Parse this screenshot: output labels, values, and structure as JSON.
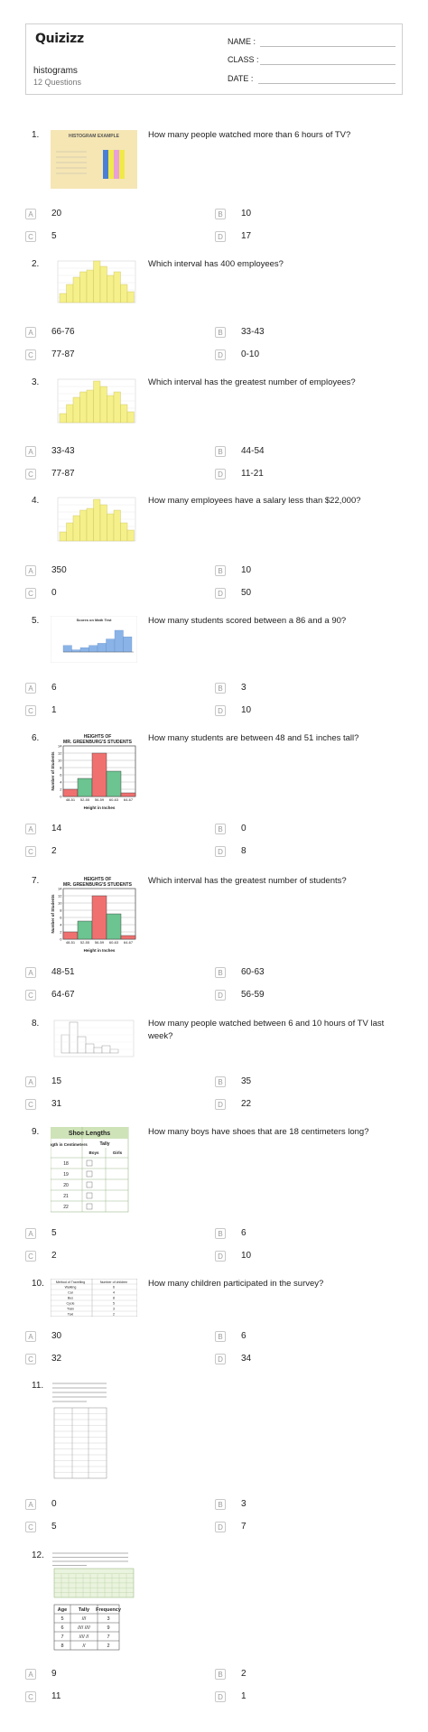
{
  "header": {
    "logo": "Quizizz",
    "title": "histograms",
    "subtitle": "12 Questions",
    "name_label": "NAME :",
    "class_label": "CLASS :",
    "date_label": "DATE :"
  },
  "questions": [
    {
      "num": "1.",
      "text": "How many people watched more than 6 hours of TV?",
      "options": [
        "20",
        "10",
        "5",
        "17"
      ],
      "image": {
        "title": "HISTOGRAM EXAMPLE"
      }
    },
    {
      "num": "2.",
      "text": "Which interval has 400 employees?",
      "options": [
        "66-76",
        "33-43",
        "77-87",
        "0-10"
      ]
    },
    {
      "num": "3.",
      "text": "Which interval has the greatest number of employees?",
      "options": [
        "33-43",
        "44-54",
        "77-87",
        "11-21"
      ]
    },
    {
      "num": "4.",
      "text": "How many employees have a salary less than $22,000?",
      "options": [
        "350",
        "10",
        "0",
        "50"
      ]
    },
    {
      "num": "5.",
      "text": "How many students scored between a 86 and a 90?",
      "options": [
        "6",
        "3",
        "1",
        "10"
      ],
      "image": {
        "title": "Scores on Math Test"
      }
    },
    {
      "num": "6.",
      "text": "How many students are between 48 and 51 inches tall?",
      "options": [
        "14",
        "0",
        "2",
        "8"
      ],
      "image": {
        "title1": "HEIGHTS OF",
        "title2": "MR. GREENBURG'S STUDENTS",
        "ylabel": "Number of Students",
        "xlabel": "Height in Inches",
        "categories": [
          "48-51",
          "52-55",
          "56-59",
          "60-63",
          "64-67"
        ],
        "yticks": [
          "0",
          "2",
          "4",
          "6",
          "8",
          "10",
          "12",
          "14"
        ]
      }
    },
    {
      "num": "7.",
      "text": "Which interval has the greatest number of students?",
      "options": [
        "48-51",
        "60-63",
        "64-67",
        "56-59"
      ],
      "image": {
        "title1": "HEIGHTS OF",
        "title2": "MR. GREENBURG'S STUDENTS",
        "ylabel": "Number of Students",
        "xlabel": "Height in Inches",
        "categories": [
          "48-51",
          "52-55",
          "56-59",
          "60-63",
          "64-67"
        ],
        "yticks": [
          "0",
          "2",
          "4",
          "6",
          "8",
          "10",
          "12",
          "14"
        ]
      }
    },
    {
      "num": "8.",
      "text": "How many people watched between 6 and 10 hours of TV last week?",
      "options": [
        "15",
        "35",
        "31",
        "22"
      ]
    },
    {
      "num": "9.",
      "text": "How many boys have shoes that are 18 centimeters long?",
      "options": [
        "5",
        "6",
        "2",
        "10"
      ],
      "image": {
        "title": "Shoe Lengths",
        "col1": "Length in Centimeters",
        "col2": "Tally",
        "sub1": "Boys",
        "sub2": "Girls",
        "rows": [
          "18",
          "19",
          "20",
          "21",
          "22"
        ]
      }
    },
    {
      "num": "10.",
      "text": "How many children participated in the survey?",
      "options": [
        "30",
        "6",
        "32",
        "34"
      ],
      "image": {
        "h1": "Method of Travelling",
        "h2": "Number of children",
        "rows": [
          [
            "Walking",
            "6"
          ],
          [
            "Car",
            "4"
          ],
          [
            "Bus",
            "8"
          ],
          [
            "Cycle",
            "5"
          ],
          [
            "Train",
            "3"
          ],
          [
            "Taxi",
            "2"
          ]
        ]
      }
    },
    {
      "num": "11.",
      "text": "",
      "options": [
        "0",
        "3",
        "5",
        "7"
      ]
    },
    {
      "num": "12.",
      "text": "",
      "options": [
        "9",
        "2",
        "11",
        "1"
      ],
      "image": {
        "h": [
          "Age",
          "Tally",
          "Frequency"
        ],
        "rows": [
          [
            "5",
            "///",
            "3"
          ],
          [
            "6",
            "//// ////",
            "9"
          ],
          [
            "7",
            "//// //",
            "7"
          ],
          [
            "8",
            "//",
            "2"
          ]
        ]
      }
    }
  ],
  "option_letters": [
    "A",
    "B",
    "C",
    "D"
  ]
}
